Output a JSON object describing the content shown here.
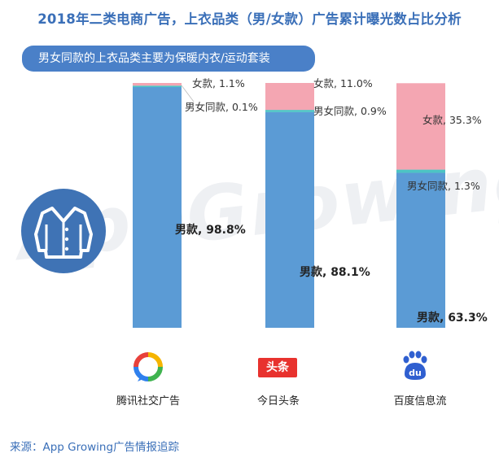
{
  "title": "2018年二类电商广告，上衣品类（男/女款）广告累计曝光数占比分析",
  "banner": "男女同款的上衣品类主要为保暖内衣/运动套装",
  "watermark": "AppGrowing",
  "source": "来源：App Growing广告情报追踪",
  "icons": {
    "shirt": "shirt-icon",
    "tencent": "tencent-social-logo-icon",
    "toutiao": "toutiao-logo-icon",
    "baidu": "baidu-paw-logo-icon"
  },
  "logos": {
    "toutiao_text": "头条",
    "baidu_text": "du"
  },
  "colors": {
    "male": "#5b9bd5",
    "unisex": "#4cc4c4",
    "female": "#f4a6b2",
    "title": "#3a6fb8",
    "banner": "#4a80c8"
  },
  "chart_data": {
    "type": "bar",
    "stacked": true,
    "categories": [
      "腾讯社交广告",
      "今日头条",
      "百度信息流"
    ],
    "series": [
      {
        "name": "男款",
        "values": [
          98.8,
          88.1,
          63.3
        ],
        "labels": [
          "男款, 98.8%",
          "男款, 88.1%",
          "男款, 63.3%"
        ]
      },
      {
        "name": "男女同款",
        "values": [
          0.1,
          0.9,
          1.3
        ],
        "labels": [
          "男女同款, 0.1%",
          "男女同款, 0.9%",
          "男女同款, 1.3%"
        ]
      },
      {
        "name": "女款",
        "values": [
          1.1,
          11.0,
          35.3
        ],
        "labels": [
          "女款, 1.1%",
          "女款, 11.0%",
          "女款, 35.3%"
        ]
      }
    ],
    "ylim": [
      0,
      100
    ]
  }
}
